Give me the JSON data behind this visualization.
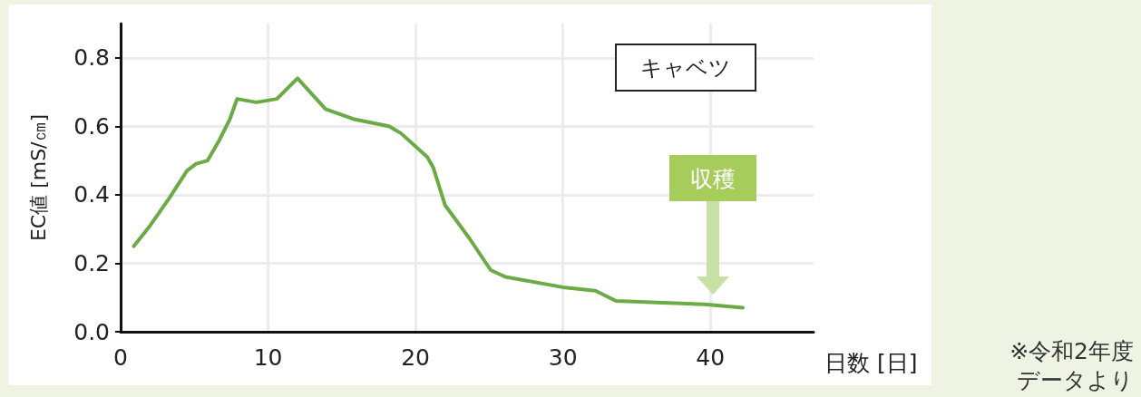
{
  "chart_data": {
    "type": "line",
    "xlabel": "日数 [日]",
    "ylabel": "EC値 [mS/㎝]",
    "xlim": [
      0,
      47
    ],
    "xticks": [
      0,
      10,
      20,
      30,
      40
    ],
    "ylim": [
      0,
      0.9
    ],
    "yticks": [
      {
        "value": 0,
        "label": "0.0"
      },
      0.2,
      0.4,
      0.6,
      0.8
    ],
    "grid": true,
    "marker": "none",
    "line_style": "solid",
    "series": [
      {
        "color": "#6aab45",
        "x": [
          0.9,
          2,
          3.3,
          4.5,
          5.1,
          5.9,
          6.7,
          7.4,
          7.9,
          9.2,
          10.6,
          12,
          13.9,
          15.9,
          18.2,
          19,
          20.8,
          21.2,
          22,
          23.7,
          25.1,
          26.1,
          30,
          32.2,
          33.6,
          39.6,
          42.2
        ],
        "values": [
          0.25,
          0.31,
          0.39,
          0.47,
          0.49,
          0.5,
          0.56,
          0.62,
          0.68,
          0.67,
          0.68,
          0.74,
          0.65,
          0.62,
          0.6,
          0.58,
          0.51,
          0.48,
          0.37,
          0.27,
          0.18,
          0.16,
          0.13,
          0.12,
          0.09,
          0.08,
          0.07
        ]
      }
    ],
    "annotations": [
      "キャベツ",
      "収穫",
      "※令和2年度データより"
    ]
  }
}
